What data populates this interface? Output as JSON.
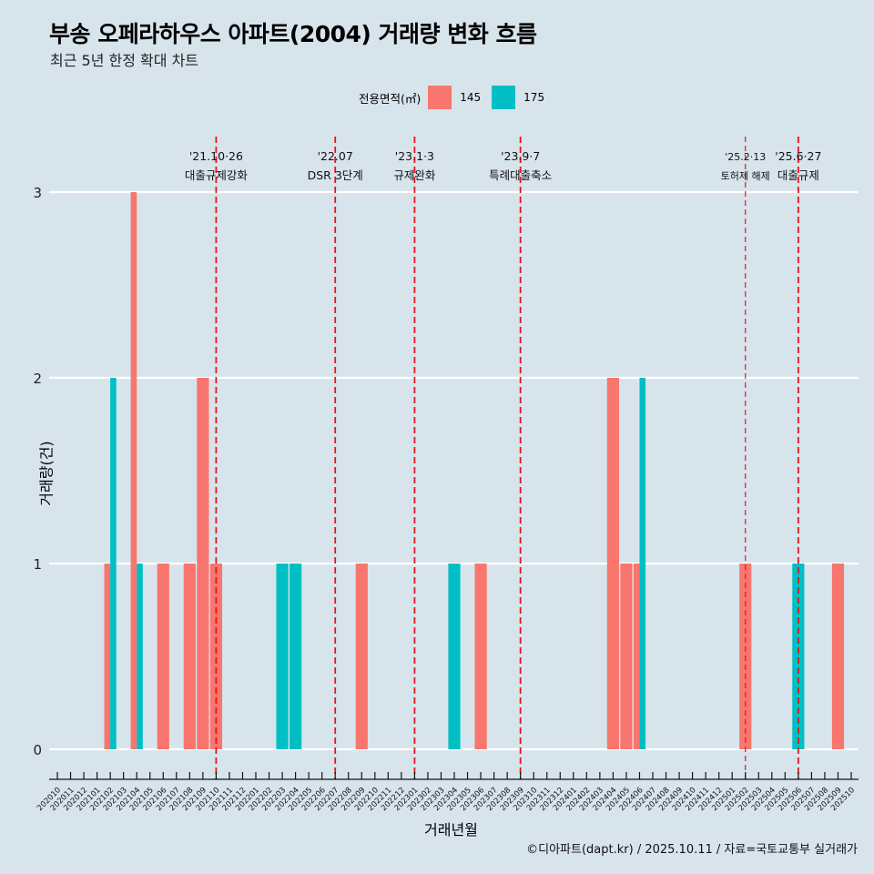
{
  "title": "부송 오페라하우스 아파트(2004) 거래량 변화 흐름",
  "subtitle": "최근 5년 한정 확대 차트",
  "caption": "©디아파트(dapt.kr) / 2025.10.11 / 자료=국토교통부 실거래가",
  "legend": {
    "title": "전용면적(㎡)",
    "items": [
      {
        "label": "145",
        "color": "#F8766D"
      },
      {
        "label": "175",
        "color": "#00BFC4"
      }
    ]
  },
  "chart_data": {
    "type": "bar",
    "title": "부송 오페라하우스 아파트(2004) 거래량 변화 흐름",
    "subtitle": "최근 5년 한정 확대 차트",
    "xlabel": "거래년월",
    "ylabel": "거래량(건)",
    "ylim": [
      0,
      3
    ],
    "yticks": [
      0,
      1,
      2,
      3
    ],
    "grid": "horizontal major",
    "legend_position": "top",
    "categories": [
      "202010",
      "202011",
      "202012",
      "202101",
      "202102",
      "202103",
      "202104",
      "202105",
      "202106",
      "202107",
      "202108",
      "202109",
      "202110",
      "202111",
      "202112",
      "202201",
      "202202",
      "202203",
      "202204",
      "202205",
      "202206",
      "202207",
      "202208",
      "202209",
      "202210",
      "202211",
      "202212",
      "202301",
      "202302",
      "202303",
      "202304",
      "202305",
      "202306",
      "202307",
      "202308",
      "202309",
      "202310",
      "202311",
      "202312",
      "202401",
      "202402",
      "202403",
      "202404",
      "202405",
      "202406",
      "202407",
      "202408",
      "202409",
      "202410",
      "202411",
      "202412",
      "202501",
      "202502",
      "202503",
      "202504",
      "202505",
      "202506",
      "202507",
      "202508",
      "202509",
      "202510"
    ],
    "series": [
      {
        "name": "145",
        "color": "#F8766D",
        "values": [
          0,
          0,
          0,
          0,
          1,
          0,
          3,
          0,
          1,
          0,
          1,
          2,
          1,
          0,
          0,
          0,
          0,
          0,
          0,
          0,
          0,
          0,
          0,
          1,
          0,
          0,
          0,
          0,
          0,
          0,
          0,
          0,
          1,
          0,
          0,
          0,
          0,
          0,
          0,
          0,
          0,
          0,
          2,
          1,
          1,
          0,
          0,
          0,
          0,
          0,
          0,
          0,
          1,
          0,
          0,
          0,
          0,
          0,
          0,
          1,
          0
        ]
      },
      {
        "name": "175",
        "color": "#00BFC4",
        "values": [
          0,
          0,
          0,
          0,
          2,
          0,
          1,
          0,
          0,
          0,
          0,
          0,
          0,
          0,
          0,
          0,
          0,
          1,
          1,
          0,
          0,
          0,
          0,
          0,
          0,
          0,
          0,
          0,
          0,
          0,
          1,
          0,
          0,
          0,
          0,
          0,
          0,
          0,
          0,
          0,
          0,
          0,
          0,
          0,
          2,
          0,
          0,
          0,
          0,
          0,
          0,
          0,
          0,
          0,
          0,
          0,
          1,
          0,
          0,
          0,
          0
        ]
      }
    ],
    "annotations": [
      {
        "x": "202110",
        "date": "'21.10·26",
        "label": "대출규제강화",
        "style": "bold"
      },
      {
        "x": "202207",
        "date": "'22.07",
        "label": "DSR 3단계",
        "style": "bold"
      },
      {
        "x": "202301",
        "date": "'23.1·3",
        "label": "규제완화",
        "style": "bold"
      },
      {
        "x": "202309",
        "date": "'23.9·7",
        "label": "특례대출축소",
        "style": "bold"
      },
      {
        "x": "202502",
        "date": "'25.2·13",
        "label": "토허제 해제",
        "style": "thin"
      },
      {
        "x": "202506",
        "date": "'25.6·27",
        "label": "대출규제",
        "style": "bold"
      }
    ],
    "annotation_color": "#E8141C"
  }
}
